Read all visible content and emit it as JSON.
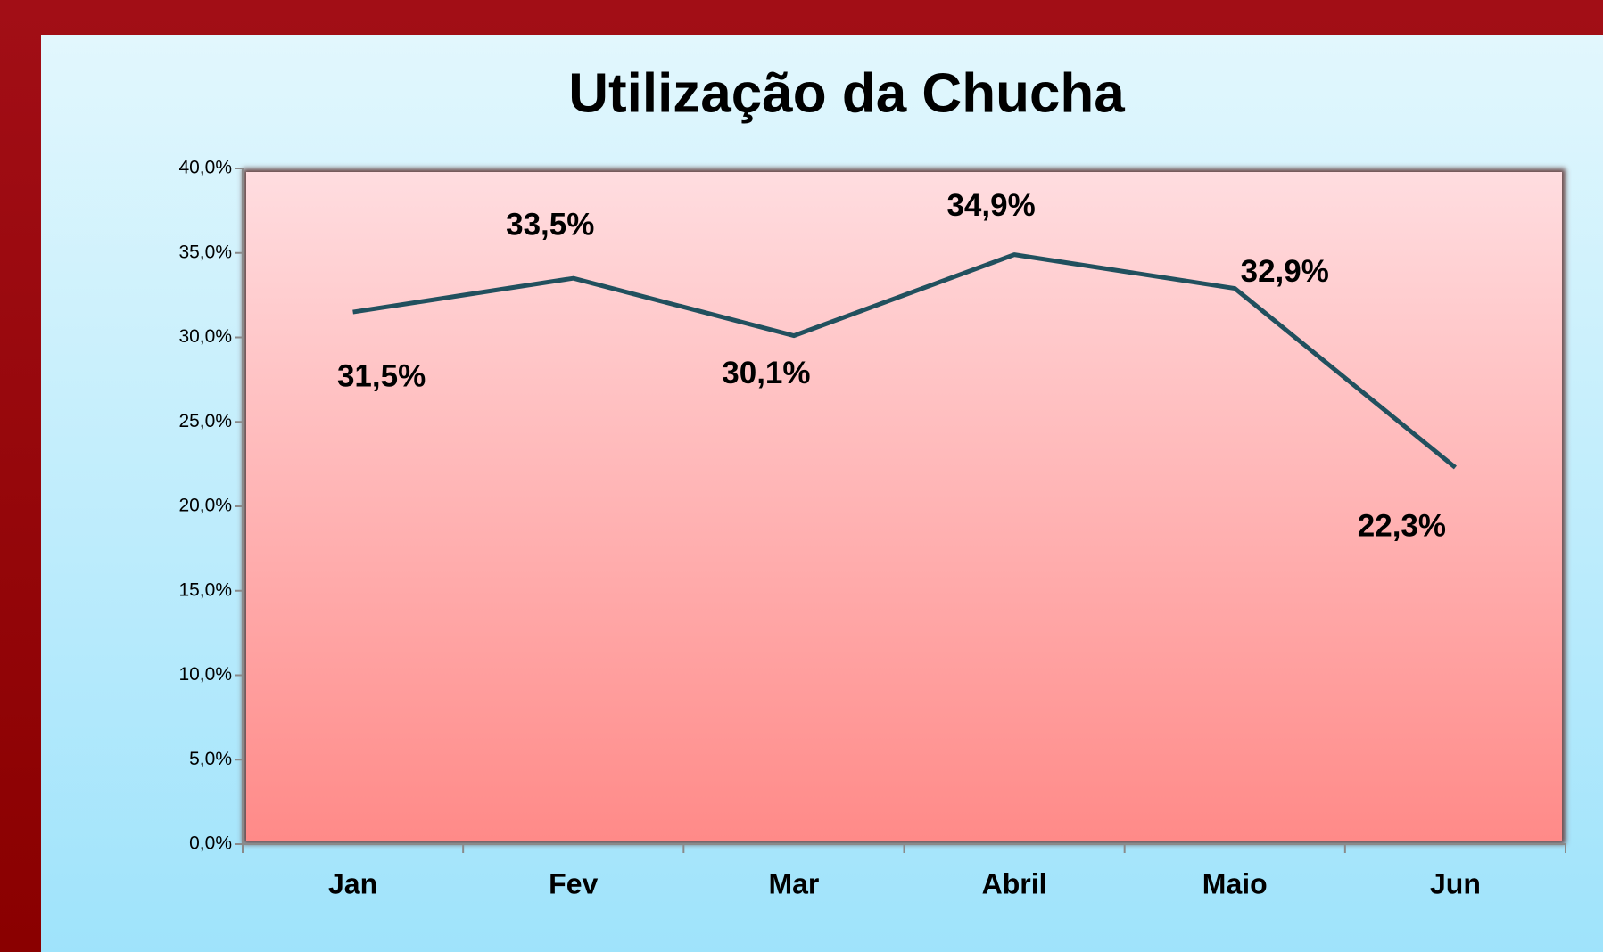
{
  "chart_data": {
    "type": "line",
    "title": "Utilização da Chucha",
    "categories": [
      "Jan",
      "Fev",
      "Mar",
      "Abril",
      "Maio",
      "Jun"
    ],
    "series": [
      {
        "name": "Utilização",
        "color": "#21505e",
        "values": [
          31.5,
          33.5,
          30.1,
          34.9,
          32.9,
          22.3
        ],
        "value_labels": [
          "31,5%",
          "33,5%",
          "30,1%",
          "34,9%",
          "32,9%",
          "22,3%"
        ]
      }
    ],
    "ylim": [
      0,
      40
    ],
    "yticks": [
      {
        "value": 0,
        "label": "0,0%"
      },
      {
        "value": 5,
        "label": "5,0%"
      },
      {
        "value": 10,
        "label": "10,0%"
      },
      {
        "value": 15,
        "label": "15,0%"
      },
      {
        "value": 20,
        "label": "20,0%"
      },
      {
        "value": 25,
        "label": "25,0%"
      },
      {
        "value": 30,
        "label": "30,0%"
      },
      {
        "value": 35,
        "label": "35,0%"
      },
      {
        "value": 40,
        "label": "40,0%"
      }
    ],
    "grid": false
  }
}
